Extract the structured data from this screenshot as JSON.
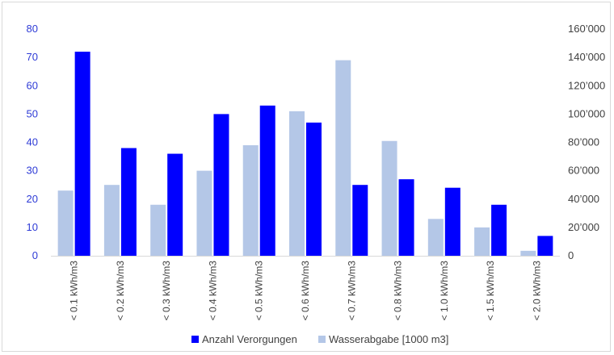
{
  "chart_data": {
    "type": "bar",
    "title": "",
    "categories": [
      "< 0.1 kWh/m3",
      "< 0.2 kWh/m3",
      "< 0.3 kWh/m3",
      "< 0.4 kWh/m3",
      "< 0.5 kWh/m3",
      "< 0.6 kWh/m3",
      "< 0.7 kWh/m3",
      "< 0.8 kWh/m3",
      "< 1.0 kWh/m3",
      "< 1.5 kWh/m3",
      "< 2.0 kWh/m3"
    ],
    "series": [
      {
        "name": "Wasserabgabe [1000 m3]",
        "axis": "right",
        "color": "#b4c7e7",
        "values": [
          46000,
          50000,
          36000,
          60000,
          78000,
          102000,
          138000,
          81000,
          26000,
          20000,
          3500
        ]
      },
      {
        "name": "Anzahl Verorgungen",
        "axis": "left",
        "color": "#0000ff",
        "values": [
          72,
          38,
          36,
          50,
          53,
          47,
          25,
          27,
          24,
          18,
          7
        ]
      }
    ],
    "y_left": {
      "min": 0,
      "max": 80,
      "ticks": [
        "0",
        "10",
        "20",
        "30",
        "40",
        "50",
        "60",
        "70",
        "80"
      ]
    },
    "y_right": {
      "min": 0,
      "max": 160000,
      "ticks": [
        "0",
        "20’000",
        "40’000",
        "60’000",
        "80’000",
        "100’000",
        "120’000",
        "140’000",
        "160’000"
      ]
    },
    "grid": false,
    "legend_position": "bottom"
  }
}
